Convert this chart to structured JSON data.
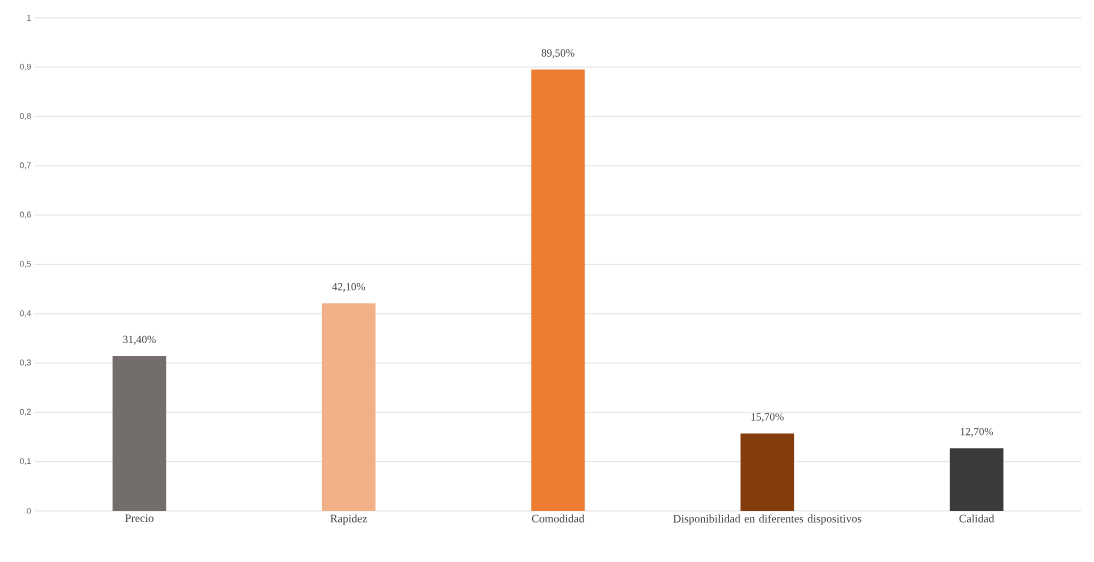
{
  "chart_data": {
    "type": "bar",
    "categories": [
      "Precio",
      "Rapidez",
      "Comodidad",
      "Disponibilidad en diferentes dispositivos",
      "Calidad"
    ],
    "values": [
      0.314,
      0.421,
      0.895,
      0.157,
      0.127
    ],
    "colors": [
      "#736e6b",
      "#f1b088",
      "#ed7d31",
      "#843c0c",
      "#3a3a3a"
    ],
    "value_labels": [
      "31,40%",
      "42,10%",
      "89,50%",
      "15,70%",
      "12,70%"
    ],
    "ylim": [
      0,
      1
    ],
    "yticks": [
      0,
      {
        "value": 0.1,
        "label": "0,1"
      },
      {
        "value": 0.2,
        "label": "0,2"
      },
      {
        "value": 0.3,
        "label": "0,3"
      },
      {
        "value": 0.4,
        "label": "0,4"
      },
      {
        "value": 0.5,
        "label": "0,5"
      },
      {
        "value": 0.6,
        "label": "0,6"
      },
      {
        "value": 0.7,
        "label": "0,7"
      },
      {
        "value": 0.8,
        "label": "0,8"
      },
      {
        "value": 0.9,
        "label": "0,9"
      },
      1
    ],
    "grid": true
  }
}
